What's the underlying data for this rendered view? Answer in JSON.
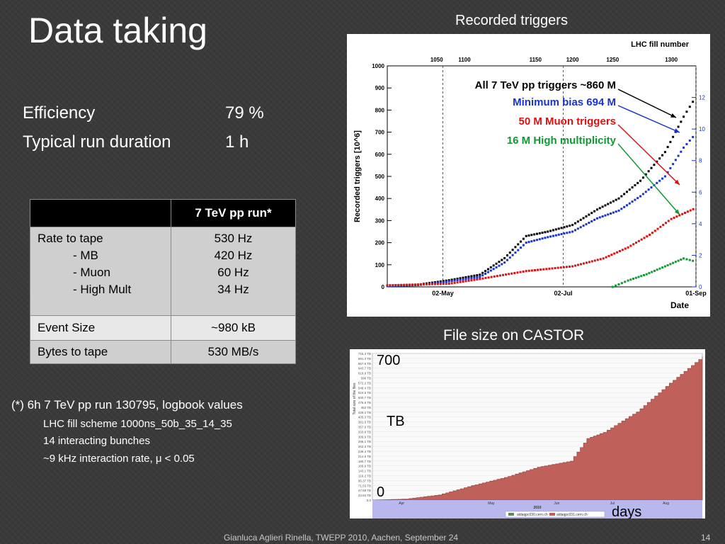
{
  "slide": {
    "title": "Data taking",
    "efficiency_label": "Efficiency",
    "efficiency_value": "79 %",
    "run_duration_label": "Typical run duration",
    "run_duration_value": "1 h",
    "footer": "Gianluca Aglieri Rinella, TWEPP 2010, Aachen, September 24",
    "page_number": "14"
  },
  "table": {
    "header": "7 TeV pp run*",
    "rows": [
      {
        "label_lines": [
          "Rate to tape",
          "- MB",
          "- Muon",
          "- High Mult"
        ],
        "value_lines": [
          "530 Hz",
          "420 Hz",
          "60 Hz",
          "34 Hz"
        ]
      },
      {
        "label": "Event Size",
        "value": "~980 kB"
      },
      {
        "label": "Bytes to tape",
        "value": "530 MB/s"
      }
    ]
  },
  "footnote": {
    "main": "(*) 6h 7 TeV pp run 130795, logbook values",
    "lines": [
      "LHC fill scheme 1000ns_50b_35_14_35",
      "14 interacting bunches",
      "~9 kHz interaction rate, μ < 0.05"
    ]
  },
  "captions": {
    "recorded": "Recorded triggers",
    "castor": "File size on CASTOR"
  },
  "chart_data": [
    {
      "type": "scatter",
      "xlabel": "Date",
      "ylabel": "Recorded triggers [10^6]",
      "top_axis_label": "LHC fill number",
      "top_ticks": [
        "1050",
        "1100",
        "1150",
        "1200",
        "1250",
        "1300"
      ],
      "x_tick_labels": [
        "02-May",
        "02-Jul",
        "01-Sep"
      ],
      "ylim": [
        0,
        1000
      ],
      "y_ticks": [
        "0",
        "100",
        "200",
        "300",
        "400",
        "500",
        "600",
        "700",
        "800",
        "900",
        "1000"
      ],
      "right_ticks": [
        "0",
        "2",
        "4",
        "6",
        "8",
        "10",
        "12"
      ],
      "grid": "vertical dashed",
      "colors": {
        "all": "#000000",
        "mb": "#1a33cc",
        "muon": "#dd1111",
        "hm": "#119933"
      },
      "annotations": [
        {
          "text": "All 7 TeV pp triggers ~860 M",
          "color": "#000000"
        },
        {
          "text": "Minimum bias 694 M",
          "color": "#1a33cc"
        },
        {
          "text": "50 M Muon triggers",
          "color": "#dd1111"
        },
        {
          "text": "16 M High multiplicity",
          "color": "#119933"
        }
      ],
      "series": [
        {
          "key": "all",
          "x": [
            0,
            0.1,
            0.2,
            0.3,
            0.38,
            0.45,
            0.52,
            0.6,
            0.68,
            0.75,
            0.82,
            0.9,
            0.96,
            1.0
          ],
          "values": [
            5,
            10,
            30,
            55,
            130,
            230,
            250,
            280,
            350,
            400,
            480,
            610,
            770,
            860
          ]
        },
        {
          "key": "mb",
          "x": [
            0,
            0.1,
            0.2,
            0.3,
            0.38,
            0.45,
            0.52,
            0.6,
            0.68,
            0.75,
            0.82,
            0.9,
            0.96,
            1.0
          ],
          "values": [
            4,
            8,
            25,
            45,
            110,
            200,
            225,
            250,
            310,
            345,
            410,
            500,
            630,
            694
          ]
        },
        {
          "key": "muon",
          "x": [
            0,
            0.2,
            0.3,
            0.45,
            0.6,
            0.7,
            0.78,
            0.85,
            0.92,
            1.0
          ],
          "values": [
            0.1,
            0.2,
            0.5,
            1.0,
            1.3,
            1.8,
            2.5,
            3.3,
            4.3,
            5.0
          ]
        },
        {
          "key": "hm",
          "x": [
            0.73,
            0.78,
            0.84,
            0.9,
            0.96,
            1.0
          ],
          "values": [
            0.0,
            0.4,
            0.8,
            1.3,
            1.8,
            1.6
          ]
        }
      ]
    },
    {
      "type": "area",
      "xlabel": "days",
      "ylabel": "TB",
      "y_top_label": "700",
      "y_bottom_label": "0",
      "ylim": [
        0,
        715.3
      ],
      "y_ticks": [
        "0.0",
        "23.84 TB",
        "47.68 TB",
        "71.53 TB",
        "95.37 TB",
        "119.2 TB",
        "143.1 TB",
        "166.9 TB",
        "190.7 TB",
        "214.6 TB",
        "238.4 TB",
        "262.3 TB",
        "286.1 TB",
        "309.9 TB",
        "333.8 TB",
        "357.6 TB",
        "381.5 TB",
        "405.3 TB",
        "429.2 TB",
        "453 TB",
        "476.8 TB",
        "500.7 TB",
        "524.5 TB",
        "548.4 TB",
        "572.2 TB",
        "596 TB",
        "619.9 TB",
        "643.7 TB",
        "667.6 TB",
        "691.4 TB",
        "715.3 TB"
      ],
      "x_tick_labels": [
        "Apr",
        "May",
        "Jun",
        "Jul",
        "Aug"
      ],
      "year_label": "2010",
      "legend": [
        "aldaqpc030.cern.ch",
        "aldaqpc031.cern.ch"
      ],
      "fill_color": "#c0605a",
      "x": [
        0,
        0.1,
        0.2,
        0.3,
        0.4,
        0.5,
        0.6,
        0.65,
        0.7,
        0.8,
        0.9,
        1.0
      ],
      "values": [
        0,
        5,
        25,
        70,
        110,
        160,
        190,
        300,
        330,
        430,
        570,
        700
      ]
    }
  ]
}
